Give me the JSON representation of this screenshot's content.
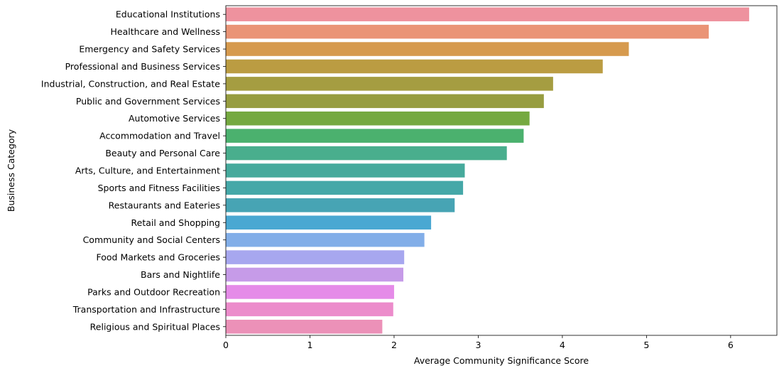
{
  "chart_data": {
    "type": "bar",
    "orientation": "horizontal",
    "title": "",
    "xlabel": "Average Community Significance Score",
    "ylabel": "Business Category",
    "xlim": [
      0,
      6.55
    ],
    "xticks": [
      0,
      1,
      2,
      3,
      4,
      5,
      6
    ],
    "grid": false,
    "legend": "none",
    "categories": [
      "Educational Institutions",
      "Healthcare and Wellness",
      "Emergency and Safety Services",
      "Professional and Business Services",
      "Industrial, Construction, and Real Estate",
      "Public and Government Services",
      "Automotive Services",
      "Accommodation and Travel",
      "Beauty and Personal Care",
      "Arts, Culture, and Entertainment",
      "Sports and Fitness Facilities",
      "Restaurants and Eateries",
      "Retail and Shopping",
      "Community and Social Centers",
      "Food Markets and Groceries",
      "Bars and Nightlife",
      "Parks and Outdoor Recreation",
      "Transportation and Infrastructure",
      "Religious and Spiritual Places"
    ],
    "values": [
      6.22,
      5.74,
      4.79,
      4.48,
      3.89,
      3.78,
      3.61,
      3.54,
      3.34,
      2.84,
      2.82,
      2.72,
      2.44,
      2.36,
      2.12,
      2.11,
      2.0,
      1.99,
      1.86
    ],
    "colors": [
      "#ee929e",
      "#ea9476",
      "#d69a4e",
      "#bb9c42",
      "#a59d41",
      "#979d40",
      "#75a940",
      "#4bb16e",
      "#49ae8d",
      "#46aa9c",
      "#45a8a8",
      "#47a4b4",
      "#4aa8d2",
      "#82aee8",
      "#a7a7ef",
      "#c69be8",
      "#e58be8",
      "#ec8ccb",
      "#ec91b8"
    ]
  }
}
